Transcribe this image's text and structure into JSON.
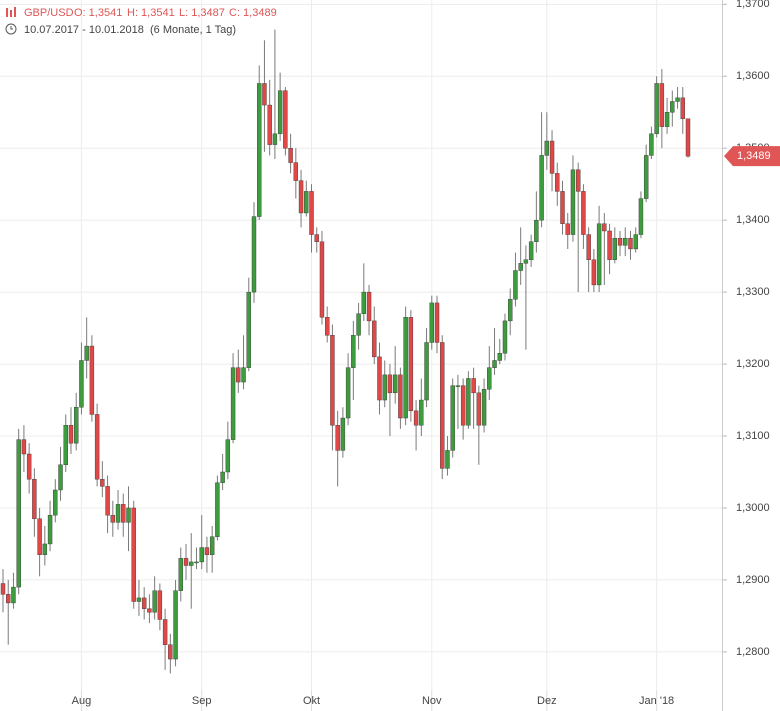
{
  "chart_data": {
    "type": "candlestick",
    "title": "GBP/USD",
    "ohlc": [
      "O: 1,3541",
      "H: 1,3541",
      "L: 1,3487",
      "C: 1,3489"
    ],
    "subtitle": "10.07.2017 - 10.01.2018",
    "period": "(6 Monate, 1 Tag)",
    "last_price": {
      "value": 1.3489,
      "label": "1,3489"
    },
    "up_color": "#3e9b3e",
    "down_color": "#e04848",
    "wick_color": "#7a7a7a",
    "tag_color": "#e05555",
    "grid": true,
    "ylim": [
      1.2747,
      1.3706
    ],
    "yticks": [
      {
        "value": 1.37,
        "label": "1,3700"
      },
      {
        "value": 1.36,
        "label": "1,3600"
      },
      {
        "value": 1.35,
        "label": "1,3500"
      },
      {
        "value": 1.34,
        "label": "1,3400"
      },
      {
        "value": 1.33,
        "label": "1,3300"
      },
      {
        "value": 1.32,
        "label": "1,3200"
      },
      {
        "value": 1.31,
        "label": "1,3100"
      },
      {
        "value": 1.3,
        "label": "1,3000"
      },
      {
        "value": 1.29,
        "label": "1,2900"
      },
      {
        "value": 1.28,
        "label": "1,2800"
      }
    ],
    "categories": [
      null,
      null,
      null,
      null,
      null,
      null,
      null,
      null,
      null,
      null,
      null,
      null,
      null,
      null,
      null,
      "Aug",
      null,
      null,
      null,
      null,
      null,
      null,
      null,
      null,
      null,
      null,
      null,
      null,
      null,
      null,
      null,
      null,
      null,
      null,
      null,
      null,
      null,
      null,
      "Sep",
      null,
      null,
      null,
      null,
      null,
      null,
      null,
      null,
      null,
      null,
      null,
      null,
      null,
      null,
      null,
      null,
      null,
      null,
      null,
      null,
      "Okt",
      null,
      null,
      null,
      null,
      null,
      null,
      null,
      null,
      null,
      null,
      null,
      null,
      null,
      null,
      null,
      null,
      null,
      null,
      null,
      null,
      null,
      null,
      "Nov",
      null,
      null,
      null,
      null,
      null,
      null,
      null,
      null,
      null,
      null,
      null,
      null,
      null,
      null,
      null,
      null,
      null,
      null,
      null,
      null,
      null,
      "Dez",
      null,
      null,
      null,
      null,
      null,
      null,
      null,
      null,
      null,
      null,
      null,
      null,
      null,
      null,
      null,
      null,
      null,
      null,
      null,
      null,
      "Jan '18",
      null,
      null,
      null,
      null,
      null,
      null
    ],
    "open": [
      1.2895,
      1.288,
      1.2868,
      1.289,
      1.3095,
      1.3075,
      1.304,
      1.2985,
      1.2935,
      1.295,
      1.299,
      1.3025,
      1.306,
      1.3115,
      1.309,
      1.314,
      1.3205,
      1.3225,
      1.313,
      1.304,
      1.303,
      1.299,
      1.298,
      1.3005,
      1.298,
      1.3,
      1.287,
      1.2875,
      1.286,
      1.2855,
      1.2885,
      1.2845,
      1.281,
      1.279,
      1.2885,
      1.293,
      1.292,
      1.2925,
      1.2925,
      1.2945,
      1.2935,
      1.296,
      1.3035,
      1.305,
      1.3095,
      1.3195,
      1.3175,
      1.3195,
      1.33,
      1.3405,
      1.359,
      1.356,
      1.3505,
      1.352,
      1.358,
      1.35,
      1.348,
      1.3455,
      1.341,
      1.344,
      1.338,
      1.337,
      1.3265,
      1.324,
      1.3115,
      1.308,
      1.3125,
      1.3195,
      1.324,
      1.327,
      1.33,
      1.326,
      1.321,
      1.315,
      1.3185,
      1.316,
      1.3185,
      1.3125,
      1.3265,
      1.3135,
      1.3115,
      1.315,
      1.323,
      1.3285,
      1.323,
      1.3055,
      1.308,
      1.317,
      1.317,
      1.3115,
      1.318,
      1.316,
      1.3115,
      1.3165,
      1.3195,
      1.3205,
      1.3215,
      1.326,
      1.329,
      1.333,
      1.334,
      1.3345,
      1.337,
      1.34,
      1.349,
      1.351,
      1.3465,
      1.344,
      1.3395,
      1.338,
      1.347,
      1.344,
      1.338,
      1.3345,
      1.331,
      1.3395,
      1.3385,
      1.3345,
      1.3375,
      1.3365,
      1.3375,
      1.336,
      1.338,
      1.343,
      1.349,
      1.352,
      1.359,
      1.353,
      1.355,
      1.3565,
      1.357,
      1.3541
    ],
    "high": [
      1.2915,
      1.29,
      1.291,
      1.311,
      1.3115,
      1.309,
      1.3055,
      1.3,
      1.2975,
      1.301,
      1.304,
      1.3085,
      1.313,
      1.314,
      1.316,
      1.323,
      1.3265,
      1.324,
      1.3145,
      1.3065,
      1.3045,
      1.301,
      1.3025,
      1.302,
      1.303,
      1.301,
      1.29,
      1.289,
      1.288,
      1.2905,
      1.2895,
      1.286,
      1.2825,
      1.29,
      1.2945,
      1.295,
      1.2965,
      1.2945,
      1.299,
      1.296,
      1.2975,
      1.3045,
      1.3075,
      1.312,
      1.3215,
      1.322,
      1.324,
      1.332,
      1.3425,
      1.3615,
      1.365,
      1.3595,
      1.3665,
      1.3605,
      1.3585,
      1.352,
      1.35,
      1.347,
      1.3455,
      1.345,
      1.339,
      1.3385,
      1.328,
      1.3255,
      1.3135,
      1.314,
      1.3215,
      1.326,
      1.3285,
      1.334,
      1.331,
      1.328,
      1.323,
      1.3205,
      1.32,
      1.3225,
      1.3195,
      1.328,
      1.3275,
      1.315,
      1.318,
      1.325,
      1.3295,
      1.3295,
      1.324,
      1.31,
      1.318,
      1.3185,
      1.318,
      1.319,
      1.3195,
      1.317,
      1.318,
      1.3225,
      1.325,
      1.3235,
      1.327,
      1.3305,
      1.3355,
      1.339,
      1.3365,
      1.338,
      1.344,
      1.355,
      1.355,
      1.3525,
      1.348,
      1.3455,
      1.341,
      1.349,
      1.348,
      1.345,
      1.339,
      1.336,
      1.342,
      1.341,
      1.3395,
      1.339,
      1.3385,
      1.339,
      1.3385,
      1.339,
      1.344,
      1.3505,
      1.353,
      1.36,
      1.361,
      1.357,
      1.358,
      1.3585,
      1.3585,
      1.3541
    ],
    "low": [
      1.2855,
      1.281,
      1.286,
      1.288,
      1.305,
      1.302,
      1.296,
      1.2905,
      1.292,
      1.294,
      1.298,
      1.301,
      1.305,
      1.3075,
      1.308,
      1.313,
      1.318,
      1.312,
      1.303,
      1.3015,
      1.2965,
      1.296,
      1.297,
      1.296,
      1.294,
      1.286,
      1.285,
      1.2845,
      1.284,
      1.2845,
      1.283,
      1.2775,
      1.277,
      1.278,
      1.287,
      1.29,
      1.286,
      1.2915,
      1.2915,
      1.291,
      1.291,
      1.2955,
      1.3025,
      1.304,
      1.309,
      1.316,
      1.3165,
      1.319,
      1.3285,
      1.34,
      1.3495,
      1.349,
      1.3485,
      1.351,
      1.349,
      1.3465,
      1.343,
      1.339,
      1.3405,
      1.3355,
      1.3355,
      1.3255,
      1.323,
      1.308,
      1.303,
      1.307,
      1.3115,
      1.315,
      1.322,
      1.326,
      1.324,
      1.32,
      1.313,
      1.314,
      1.31,
      1.3145,
      1.311,
      1.3115,
      1.312,
      1.308,
      1.31,
      1.314,
      1.322,
      1.3215,
      1.304,
      1.3045,
      1.307,
      1.311,
      1.3095,
      1.311,
      1.311,
      1.306,
      1.3105,
      1.315,
      1.3185,
      1.32,
      1.3205,
      1.324,
      1.328,
      1.331,
      1.322,
      1.3335,
      1.3355,
      1.339,
      1.347,
      1.344,
      1.342,
      1.338,
      1.336,
      1.337,
      1.33,
      1.336,
      1.33,
      1.33,
      1.33,
      1.331,
      1.3325,
      1.334,
      1.335,
      1.335,
      1.3345,
      1.3355,
      1.3375,
      1.3425,
      1.3485,
      1.3515,
      1.35,
      1.352,
      1.353,
      1.3555,
      1.352,
      1.3487
    ],
    "close": [
      1.288,
      1.2868,
      1.289,
      1.3095,
      1.3075,
      1.304,
      1.2985,
      1.2935,
      1.295,
      1.299,
      1.3025,
      1.306,
      1.3115,
      1.309,
      1.314,
      1.3205,
      1.3225,
      1.313,
      1.304,
      1.303,
      1.299,
      1.298,
      1.3005,
      1.298,
      1.3,
      1.287,
      1.2875,
      1.286,
      1.2855,
      1.2885,
      1.2845,
      1.281,
      1.279,
      1.2885,
      1.293,
      1.292,
      1.2925,
      1.2925,
      1.2945,
      1.2935,
      1.296,
      1.3035,
      1.305,
      1.3095,
      1.3195,
      1.3175,
      1.3195,
      1.33,
      1.3405,
      1.359,
      1.356,
      1.3505,
      1.352,
      1.358,
      1.35,
      1.348,
      1.3455,
      1.341,
      1.344,
      1.338,
      1.337,
      1.3265,
      1.324,
      1.3115,
      1.308,
      1.3125,
      1.3195,
      1.324,
      1.327,
      1.33,
      1.326,
      1.321,
      1.315,
      1.3185,
      1.316,
      1.3185,
      1.3125,
      1.3265,
      1.3135,
      1.3115,
      1.315,
      1.323,
      1.3285,
      1.323,
      1.3055,
      1.308,
      1.317,
      1.317,
      1.3115,
      1.318,
      1.316,
      1.3115,
      1.3165,
      1.3195,
      1.3205,
      1.3215,
      1.326,
      1.329,
      1.333,
      1.334,
      1.3345,
      1.337,
      1.34,
      1.349,
      1.351,
      1.3465,
      1.344,
      1.3395,
      1.338,
      1.347,
      1.344,
      1.338,
      1.3345,
      1.331,
      1.3395,
      1.3385,
      1.3345,
      1.3375,
      1.3365,
      1.3375,
      1.336,
      1.338,
      1.343,
      1.349,
      1.352,
      1.359,
      1.353,
      1.355,
      1.3565,
      1.357,
      1.3541,
      1.3489
    ]
  }
}
